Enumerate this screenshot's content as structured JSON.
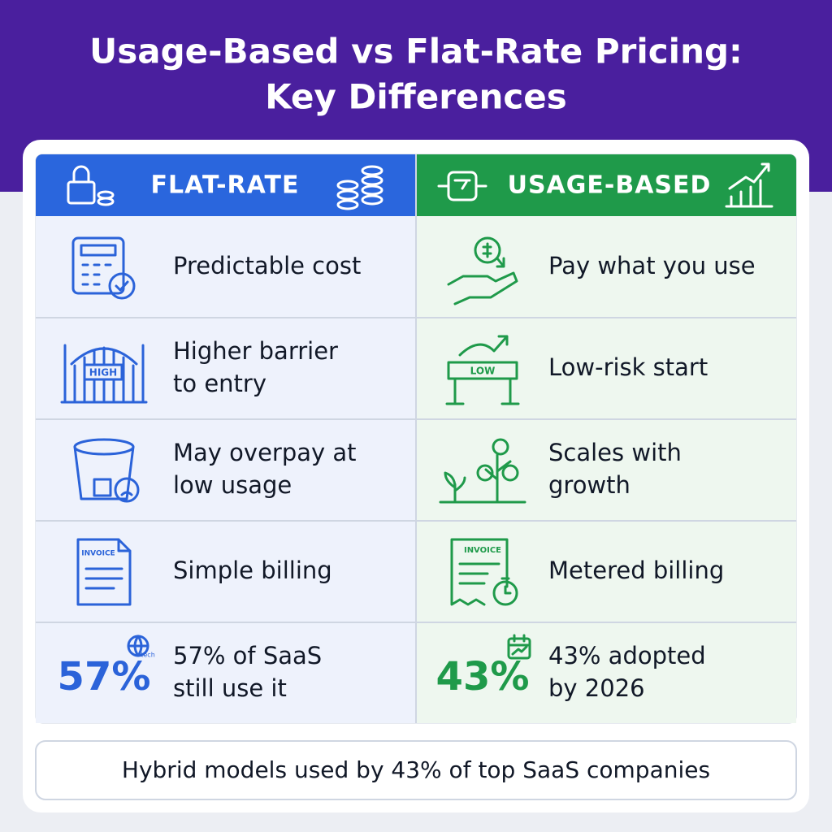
{
  "header": {
    "title": [
      "Usage-Based vs Flat-Rate Pricing:",
      "Key Differences"
    ]
  },
  "columns": {
    "flat": "FLAT-RATE",
    "usage": "USAGE-BASED"
  },
  "rows": [
    {
      "flat": [
        "Predictable cost"
      ],
      "usage": [
        "Pay what you use"
      ]
    },
    {
      "flat": [
        "Higher barrier",
        "to entry"
      ],
      "usage": [
        "Low-risk start"
      ]
    },
    {
      "flat": [
        "May overpay at",
        "low usage"
      ],
      "usage": [
        "Scales with",
        "growth"
      ]
    },
    {
      "flat": [
        "Simple billing"
      ],
      "usage": [
        "Metered billing"
      ]
    },
    {
      "flat": [
        "57% of SaaS",
        "still use it"
      ],
      "usage": [
        "43% adopted",
        "by 2026"
      ]
    }
  ],
  "stats": {
    "flat": "57%",
    "usage": "43%"
  },
  "icon_labels": {
    "gate": "HIGH",
    "barrier": "LOW",
    "flat_invoice": "INVOICE",
    "usage_invoice": "INVOICE",
    "globe": "tech"
  },
  "footer": "Hybrid models used by 43% of top SaaS companies"
}
